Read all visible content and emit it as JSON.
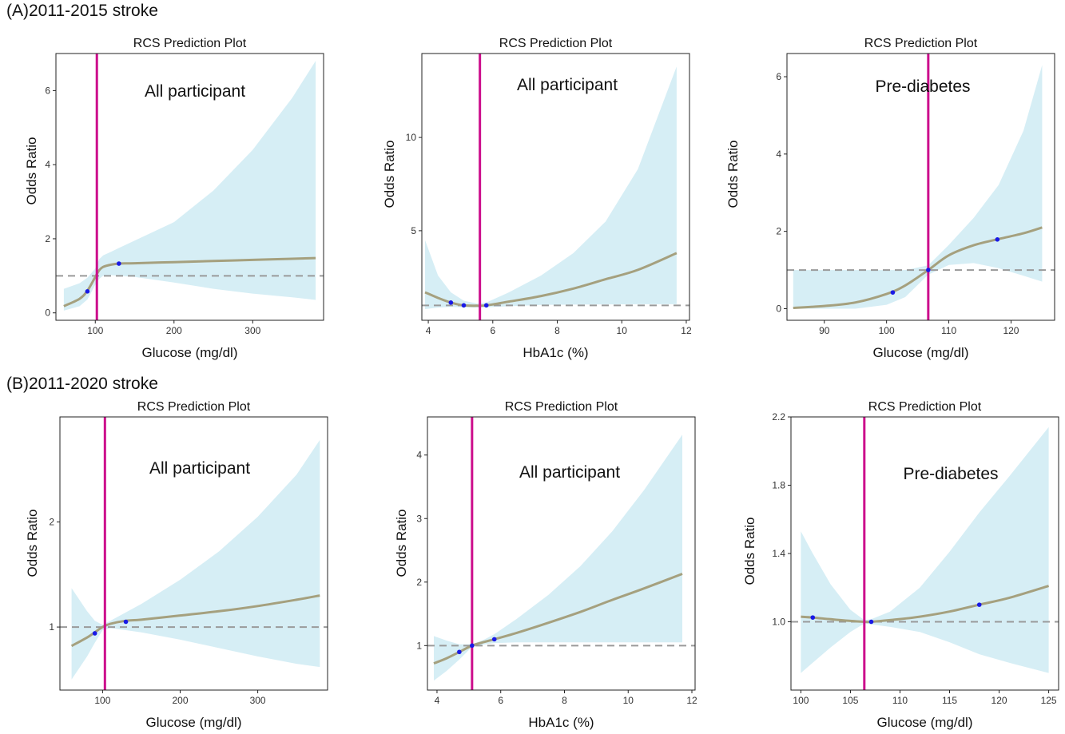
{
  "sections": {
    "a_label": "(A)2011-2015 stroke",
    "b_label": "(B)2011-2020 stroke"
  },
  "colors": {
    "band": "#d6eef5",
    "curve": "#a5a07e",
    "cutoff": "#cc0e8c",
    "reference": "#9a9a9a",
    "knot": "#1919e6",
    "axis": "#222222"
  },
  "chart_data": [
    {
      "type": "line",
      "title": "RCS Prediction Plot",
      "annotation": "All participant",
      "xlabel": "Glucose (mg/dl)",
      "ylabel": "Odds Ratio",
      "xlim": [
        50,
        390
      ],
      "ylim": [
        -0.2,
        7.0
      ],
      "xticks": [
        100,
        200,
        300
      ],
      "yticks": [
        0,
        2,
        4,
        6
      ],
      "cutoff_x": 102,
      "reference_y": 1,
      "series": [
        {
          "x": [
            60,
            80,
            90,
            100,
            105,
            110,
            120,
            130,
            150,
            200,
            250,
            300,
            350,
            380
          ],
          "values": [
            0.18,
            0.38,
            0.6,
            0.97,
            1.15,
            1.24,
            1.3,
            1.33,
            1.34,
            1.37,
            1.4,
            1.43,
            1.46,
            1.48
          ],
          "lower": [
            0.06,
            0.18,
            0.36,
            0.76,
            0.92,
            1.0,
            1.02,
            1.0,
            0.97,
            0.82,
            0.65,
            0.52,
            0.42,
            0.35
          ],
          "upper": [
            0.65,
            0.8,
            0.95,
            1.2,
            1.45,
            1.55,
            1.65,
            1.75,
            1.95,
            2.45,
            3.3,
            4.4,
            5.8,
            6.8
          ]
        }
      ],
      "knots": [
        {
          "x": 90,
          "y": 0.58
        },
        {
          "x": 130,
          "y": 1.33
        }
      ]
    },
    {
      "type": "line",
      "title": "RCS Prediction Plot",
      "annotation": "All participant",
      "xlabel": "HbA1c (%)",
      "ylabel": "Odds Ratio",
      "xlim": [
        3.8,
        12.1
      ],
      "ylim": [
        0.2,
        14.5
      ],
      "xticks": [
        4,
        6,
        8,
        10,
        12
      ],
      "yticks": [
        5,
        10
      ],
      "cutoff_x": 5.6,
      "reference_y": 1,
      "series": [
        {
          "x": [
            3.9,
            4.3,
            4.7,
            5.1,
            5.5,
            5.8,
            6.5,
            7.5,
            8.5,
            9.5,
            10.5,
            11.7
          ],
          "values": [
            1.7,
            1.4,
            1.15,
            1.0,
            0.98,
            1.0,
            1.2,
            1.5,
            1.9,
            2.4,
            2.9,
            3.8
          ],
          "lower": [
            0.8,
            0.88,
            0.92,
            0.9,
            0.88,
            0.9,
            0.95,
            1.02,
            1.04,
            1.05,
            1.06,
            1.06
          ],
          "upper": [
            4.5,
            2.6,
            1.7,
            1.25,
            1.1,
            1.15,
            1.7,
            2.6,
            3.8,
            5.5,
            8.3,
            13.8
          ]
        }
      ],
      "knots": [
        {
          "x": 4.7,
          "y": 1.15
        },
        {
          "x": 5.1,
          "y": 1.0
        },
        {
          "x": 5.8,
          "y": 1.0
        }
      ]
    },
    {
      "type": "line",
      "title": "RCS Prediction Plot",
      "annotation": "Pre-diabetes",
      "xlabel": "Glucose (mg/dl)",
      "ylabel": "Odds Ratio",
      "xlim": [
        84,
        127
      ],
      "ylim": [
        -0.3,
        6.6
      ],
      "xticks": [
        90,
        100,
        110,
        120
      ],
      "yticks": [
        0,
        2,
        4,
        6
      ],
      "cutoff_x": 106.7,
      "reference_y": 1,
      "series": [
        {
          "x": [
            85,
            90,
            95,
            100,
            103,
            106.7,
            110,
            114,
            118,
            122,
            125
          ],
          "values": [
            0.02,
            0.07,
            0.16,
            0.38,
            0.6,
            1.0,
            1.38,
            1.64,
            1.8,
            1.95,
            2.1
          ],
          "lower": [
            0.0,
            0.0,
            0.0,
            0.1,
            0.3,
            0.88,
            1.13,
            1.18,
            1.05,
            0.85,
            0.7
          ],
          "upper": [
            1.0,
            1.0,
            1.0,
            1.0,
            1.0,
            1.12,
            1.65,
            2.35,
            3.2,
            4.6,
            6.3
          ]
        }
      ],
      "knots": [
        {
          "x": 101,
          "y": 0.42
        },
        {
          "x": 106.7,
          "y": 1.0
        },
        {
          "x": 117.8,
          "y": 1.79
        }
      ]
    },
    {
      "type": "line",
      "title": "RCS Prediction Plot",
      "annotation": "All participant",
      "xlabel": "Glucose (mg/dl)",
      "ylabel": "Odds Ratio",
      "xlim": [
        45,
        390
      ],
      "ylim": [
        0.4,
        3.0
      ],
      "xticks": [
        100,
        200,
        300
      ],
      "yticks": [
        1,
        2
      ],
      "cutoff_x": 103,
      "reference_y": 1,
      "series": [
        {
          "x": [
            60,
            80,
            90,
            100,
            110,
            130,
            150,
            200,
            250,
            300,
            350,
            380
          ],
          "values": [
            0.82,
            0.9,
            0.95,
            1.0,
            1.03,
            1.06,
            1.07,
            1.11,
            1.15,
            1.2,
            1.26,
            1.3
          ],
          "lower": [
            0.5,
            0.72,
            0.85,
            0.97,
            0.99,
            0.97,
            0.95,
            0.88,
            0.8,
            0.72,
            0.65,
            0.62
          ],
          "upper": [
            1.37,
            1.15,
            1.06,
            1.02,
            1.06,
            1.14,
            1.22,
            1.45,
            1.72,
            2.05,
            2.45,
            2.78
          ]
        }
      ],
      "knots": [
        {
          "x": 90,
          "y": 0.94
        },
        {
          "x": 130,
          "y": 1.05
        }
      ]
    },
    {
      "type": "line",
      "title": "RCS Prediction Plot",
      "annotation": "All participant",
      "xlabel": "HbA1c (%)",
      "ylabel": "Odds Ratio",
      "xlim": [
        3.7,
        12.1
      ],
      "ylim": [
        0.3,
        4.6
      ],
      "xticks": [
        4,
        6,
        8,
        10,
        12
      ],
      "yticks": [
        1,
        2,
        3,
        4
      ],
      "cutoff_x": 5.1,
      "reference_y": 1,
      "series": [
        {
          "x": [
            3.9,
            4.3,
            4.7,
            5.1,
            5.5,
            5.8,
            6.5,
            7.5,
            8.5,
            9.5,
            10.5,
            11.7
          ],
          "values": [
            0.72,
            0.8,
            0.9,
            1.0,
            1.06,
            1.1,
            1.2,
            1.36,
            1.53,
            1.72,
            1.9,
            2.13
          ],
          "lower": [
            0.45,
            0.6,
            0.78,
            0.98,
            1.02,
            1.04,
            1.05,
            1.05,
            1.05,
            1.05,
            1.05,
            1.05
          ],
          "upper": [
            1.15,
            1.08,
            1.02,
            1.02,
            1.1,
            1.18,
            1.42,
            1.8,
            2.25,
            2.8,
            3.45,
            4.32
          ]
        }
      ],
      "knots": [
        {
          "x": 4.7,
          "y": 0.9
        },
        {
          "x": 5.1,
          "y": 1.0
        },
        {
          "x": 5.8,
          "y": 1.1
        }
      ]
    },
    {
      "type": "line",
      "title": "RCS Prediction Plot",
      "annotation": "Pre-diabetes",
      "xlabel": "Glucose (mg/dl)",
      "ylabel": "Odds Ratio",
      "xlim": [
        99,
        126
      ],
      "ylim": [
        0.6,
        2.2
      ],
      "xticks": [
        100,
        105,
        110,
        115,
        120,
        125
      ],
      "yticks": [
        1.0,
        1.4,
        1.8,
        2.2
      ],
      "cutoff_x": 106.4,
      "reference_y": 1,
      "series": [
        {
          "x": [
            100,
            101.2,
            103,
            105,
            106.4,
            107.1,
            109,
            112,
            115,
            118,
            121,
            125
          ],
          "values": [
            1.03,
            1.025,
            1.015,
            1.005,
            1.0,
            1.0,
            1.01,
            1.03,
            1.06,
            1.1,
            1.14,
            1.21
          ],
          "lower": [
            0.7,
            0.76,
            0.85,
            0.94,
            0.99,
            0.985,
            0.97,
            0.94,
            0.88,
            0.81,
            0.76,
            0.7
          ],
          "upper": [
            1.53,
            1.4,
            1.22,
            1.07,
            1.01,
            1.015,
            1.06,
            1.2,
            1.41,
            1.64,
            1.85,
            2.14
          ]
        }
      ],
      "knots": [
        {
          "x": 101.2,
          "y": 1.025
        },
        {
          "x": 107.1,
          "y": 1.0
        },
        {
          "x": 118,
          "y": 1.1
        }
      ]
    }
  ]
}
